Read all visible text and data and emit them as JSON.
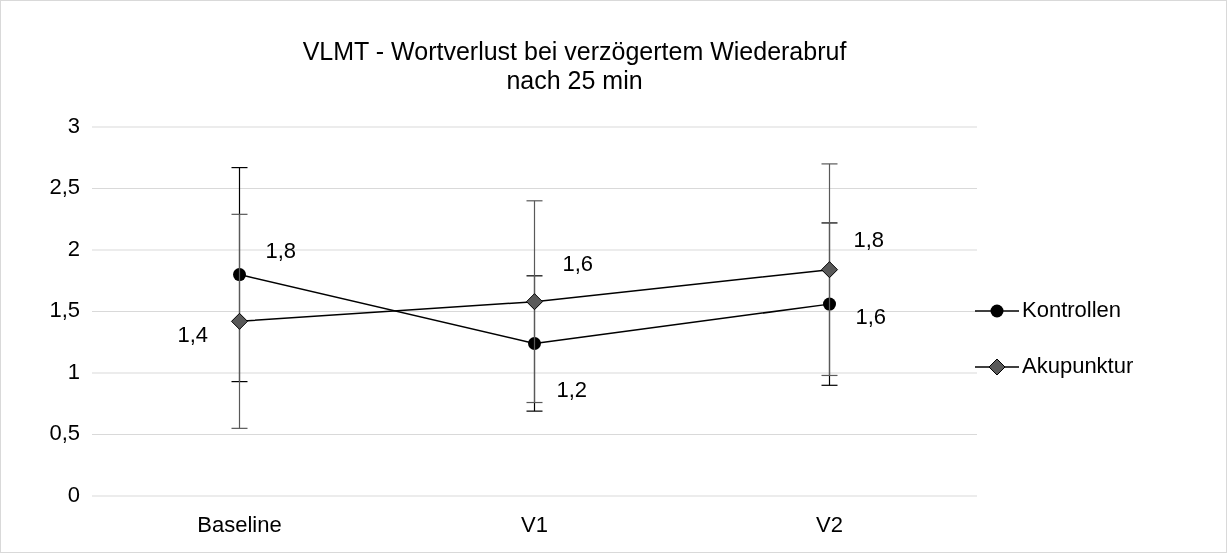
{
  "chart_data": {
    "type": "line",
    "title": "VLMT - Wortverlust bei verzögertem Wiederabruf nach 25 min",
    "categories": [
      "Baseline",
      "V1",
      "V2"
    ],
    "series": [
      {
        "name": "Kontrollen",
        "color": "#000000",
        "marker": "circle",
        "values": [
          1.8,
          1.24,
          1.56
        ],
        "errors": [
          0.87,
          0.55,
          0.66
        ],
        "value_labels": [
          "1,8",
          "1,2",
          "1,6"
        ]
      },
      {
        "name": "Akupunktur",
        "color": "#595959",
        "marker": "diamond",
        "values": [
          1.42,
          1.58,
          1.84
        ],
        "errors": [
          0.87,
          0.82,
          0.86
        ],
        "value_labels": [
          "1,4",
          "1,6",
          "1,8"
        ]
      }
    ],
    "ylim": [
      0,
      3
    ],
    "yticks": [
      0,
      {
        "value": 0.5,
        "label": "0,5"
      },
      1,
      {
        "value": 1.5,
        "label": "1,5"
      },
      2,
      {
        "value": 2.5,
        "label": "2,5"
      },
      3
    ],
    "grid": "y",
    "legend": "right",
    "line_style": "solid"
  }
}
